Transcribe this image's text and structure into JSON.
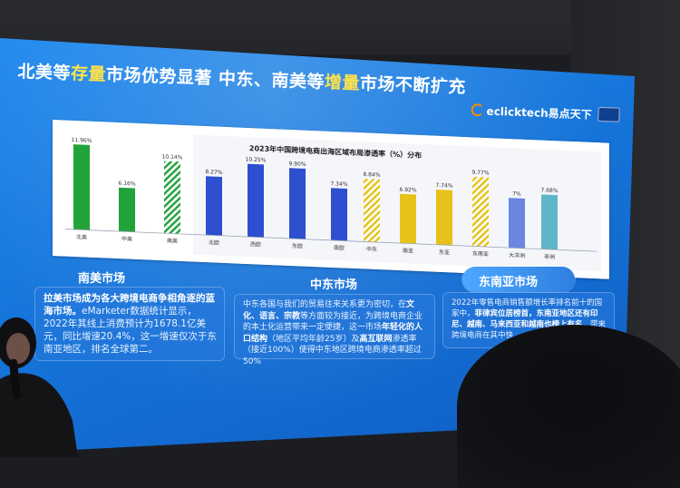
{
  "headline": {
    "part1": "北美等",
    "highlight1": "存量",
    "part2": "市场优势显著 中东、南美等",
    "highlight2": "增量",
    "part3": "市场不断扩充",
    "highlight_color": "#ffe24a"
  },
  "logo": {
    "text_latin": "eclicktech",
    "text_cn": "易点天下"
  },
  "chart_data": {
    "type": "bar",
    "title": "2023年中国跨境电商出海区域布局渗透率（%）分布",
    "categories": [
      "北美",
      "中美",
      "南美",
      "北欧",
      "西欧",
      "东欧",
      "南欧",
      "中东",
      "南亚",
      "东亚",
      "东南亚",
      "大洋洲",
      "非洲"
    ],
    "values": [
      11.96,
      6.16,
      10.14,
      8.27,
      10.25,
      9.9,
      7.34,
      8.84,
      6.92,
      7.74,
      9.77,
      7,
      7.68
    ],
    "value_labels": [
      "11.96%",
      "6.16%",
      "10.14%",
      "8.27%",
      "10.25%",
      "9.90%",
      "7.34%",
      "8.84%",
      "6.92%",
      "7.74%",
      "9.77%",
      "7%",
      "7.68%"
    ],
    "colors": [
      "#22a33a",
      "#22a33a",
      "#22a33a",
      "#2d4fd0",
      "#2d4fd0",
      "#2d4fd0",
      "#2d4fd0",
      "#e6c21a",
      "#e6c21a",
      "#e6c21a",
      "#e6c21a",
      "#6a86e0",
      "#5fb6c8"
    ],
    "hatched": [
      false,
      false,
      true,
      false,
      false,
      false,
      false,
      true,
      false,
      false,
      true,
      false,
      false
    ],
    "ylim": [
      0,
      13
    ]
  },
  "sections": {
    "south_america": {
      "title": "南美市场",
      "bold": "拉美市场成为各大跨境电商争相角逐的蓝海市场。",
      "text": "eMarketer数据统计显示，2022年其线上消费预计为1678.1亿美元，同比增速20.4%，这一增速仅次于东南亚地区，排名全球第二。"
    },
    "middle_east": {
      "title": "中东市场",
      "text_a": "中东各国与我们的贸易往来关系更为密切，在",
      "bold_a": "文化、语言、宗教",
      "text_b": "等方面较为接近，为跨境电商企业的本土化运营带来一定便捷，这一市场",
      "bold_b": "年轻化的人口结构",
      "text_c": "（地区平均年龄25岁）及",
      "bold_c": "高互联网",
      "text_d": "渗透率（接近100%）使得中东地区跨境电商渗透率超过50%"
    },
    "southeast_asia": {
      "title": "东南亚市场",
      "text_a": "2022年零售电商销售额增长率排名前十的国家中，",
      "bold_a": "菲律宾位居榜首，东南亚地区还有印尼、越南、马来西亚和越南也榜上有名",
      "text_b": "，带来跨境电商在其中快"
    }
  }
}
